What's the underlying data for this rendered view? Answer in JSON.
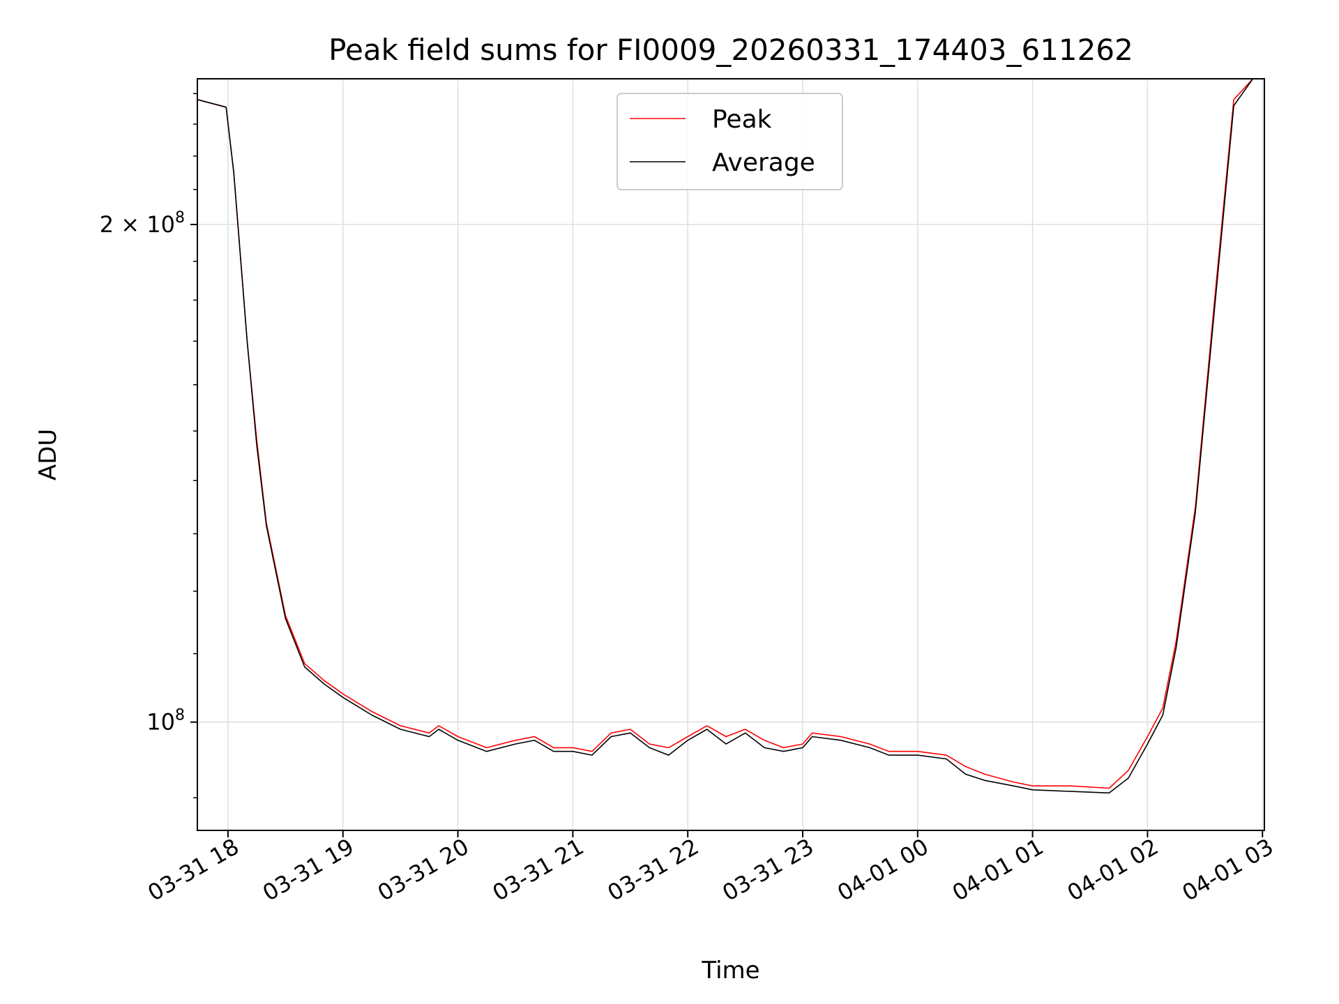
{
  "chart_data": {
    "type": "line",
    "title": "Peak field sums for FI0009_20260331_174403_611262",
    "xlabel": "Time",
    "ylabel": "ADU",
    "yscale": "log",
    "grid": true,
    "legend_position": "top-center",
    "x_ticks": [
      "03-31 18",
      "03-31 19",
      "03-31 20",
      "03-31 21",
      "03-31 22",
      "03-31 23",
      "04-01 00",
      "04-01 01",
      "04-01 02",
      "04-01 03"
    ],
    "y_ticks": [
      {
        "value": 100000000,
        "base": "10",
        "exp": "8",
        "mantissa": ""
      },
      {
        "value": 200000000,
        "base": "10",
        "exp": "8",
        "mantissa": "2 × "
      }
    ],
    "xlim": [
      "2026-03-31 17:44",
      "2026-04-01 03:01"
    ],
    "ylim": [
      86000000,
      245000000
    ],
    "colors": {
      "Peak": "#ff0000",
      "Average": "#000000"
    },
    "series": [
      {
        "name": "Peak",
        "points": [
          [
            "2026-03-31 17:44",
            238000000
          ],
          [
            "2026-03-31 17:50",
            237000000
          ],
          [
            "2026-03-31 17:59",
            235500000
          ],
          [
            "2026-03-31 18:03",
            215000000
          ],
          [
            "2026-03-31 18:10",
            170000000
          ],
          [
            "2026-03-31 18:15",
            148000000
          ],
          [
            "2026-03-31 18:20",
            132000000
          ],
          [
            "2026-03-31 18:30",
            116000000
          ],
          [
            "2026-03-31 18:40",
            108500000
          ],
          [
            "2026-03-31 18:50",
            106000000
          ],
          [
            "2026-03-31 19:00",
            104000000
          ],
          [
            "2026-03-31 19:15",
            101500000
          ],
          [
            "2026-03-31 19:30",
            99500000
          ],
          [
            "2026-03-31 19:45",
            98500000
          ],
          [
            "2026-03-31 19:50",
            99500000
          ],
          [
            "2026-03-31 20:00",
            98000000
          ],
          [
            "2026-03-31 20:15",
            96500000
          ],
          [
            "2026-03-31 20:30",
            97500000
          ],
          [
            "2026-03-31 20:40",
            98000000
          ],
          [
            "2026-03-31 20:50",
            96500000
          ],
          [
            "2026-03-31 21:00",
            96500000
          ],
          [
            "2026-03-31 21:10",
            96000000
          ],
          [
            "2026-03-31 21:20",
            98500000
          ],
          [
            "2026-03-31 21:30",
            99000000
          ],
          [
            "2026-03-31 21:40",
            97000000
          ],
          [
            "2026-03-31 21:50",
            96500000
          ],
          [
            "2026-03-31 22:00",
            98000000
          ],
          [
            "2026-03-31 22:10",
            99500000
          ],
          [
            "2026-03-31 22:20",
            98000000
          ],
          [
            "2026-03-31 22:30",
            99000000
          ],
          [
            "2026-03-31 22:40",
            97500000
          ],
          [
            "2026-03-31 22:50",
            96500000
          ],
          [
            "2026-03-31 23:00",
            97000000
          ],
          [
            "2026-03-31 23:05",
            98500000
          ],
          [
            "2026-03-31 23:20",
            98000000
          ],
          [
            "2026-03-31 23:35",
            97000000
          ],
          [
            "2026-03-31 23:45",
            96000000
          ],
          [
            "2026-04-01 00:00",
            96000000
          ],
          [
            "2026-04-01 00:15",
            95500000
          ],
          [
            "2026-04-01 00:25",
            94000000
          ],
          [
            "2026-04-01 00:35",
            93000000
          ],
          [
            "2026-04-01 00:50",
            92000000
          ],
          [
            "2026-04-01 01:00",
            91500000
          ],
          [
            "2026-04-01 01:20",
            91500000
          ],
          [
            "2026-04-01 01:40",
            91200000
          ],
          [
            "2026-04-01 01:50",
            93500000
          ],
          [
            "2026-04-01 02:00",
            98000000
          ],
          [
            "2026-04-01 02:08",
            102000000
          ],
          [
            "2026-04-01 02:15",
            112000000
          ],
          [
            "2026-04-01 02:25",
            135000000
          ],
          [
            "2026-04-01 02:35",
            180000000
          ],
          [
            "2026-04-01 02:45",
            238000000
          ],
          [
            "2026-04-01 02:55",
            245000000
          ]
        ]
      },
      {
        "name": "Average",
        "points": [
          [
            "2026-03-31 17:44",
            238000000
          ],
          [
            "2026-03-31 17:50",
            237000000
          ],
          [
            "2026-03-31 17:59",
            235500000
          ],
          [
            "2026-03-31 18:03",
            215000000
          ],
          [
            "2026-03-31 18:10",
            170000000
          ],
          [
            "2026-03-31 18:15",
            147000000
          ],
          [
            "2026-03-31 18:20",
            131500000
          ],
          [
            "2026-03-31 18:30",
            115500000
          ],
          [
            "2026-03-31 18:40",
            108000000
          ],
          [
            "2026-03-31 18:50",
            105500000
          ],
          [
            "2026-03-31 19:00",
            103500000
          ],
          [
            "2026-03-31 19:15",
            101000000
          ],
          [
            "2026-03-31 19:30",
            99000000
          ],
          [
            "2026-03-31 19:45",
            98000000
          ],
          [
            "2026-03-31 19:50",
            99000000
          ],
          [
            "2026-03-31 20:00",
            97500000
          ],
          [
            "2026-03-31 20:15",
            96000000
          ],
          [
            "2026-03-31 20:30",
            97000000
          ],
          [
            "2026-03-31 20:40",
            97500000
          ],
          [
            "2026-03-31 20:50",
            96000000
          ],
          [
            "2026-03-31 21:00",
            96000000
          ],
          [
            "2026-03-31 21:10",
            95500000
          ],
          [
            "2026-03-31 21:20",
            98000000
          ],
          [
            "2026-03-31 21:30",
            98500000
          ],
          [
            "2026-03-31 21:40",
            96500000
          ],
          [
            "2026-03-31 21:50",
            95500000
          ],
          [
            "2026-03-31 22:00",
            97500000
          ],
          [
            "2026-03-31 22:10",
            99000000
          ],
          [
            "2026-03-31 22:20",
            97000000
          ],
          [
            "2026-03-31 22:30",
            98500000
          ],
          [
            "2026-03-31 22:40",
            96500000
          ],
          [
            "2026-03-31 22:50",
            96000000
          ],
          [
            "2026-03-31 23:00",
            96500000
          ],
          [
            "2026-03-31 23:05",
            98000000
          ],
          [
            "2026-03-31 23:20",
            97500000
          ],
          [
            "2026-03-31 23:35",
            96500000
          ],
          [
            "2026-03-31 23:45",
            95500000
          ],
          [
            "2026-04-01 00:00",
            95500000
          ],
          [
            "2026-04-01 00:15",
            95000000
          ],
          [
            "2026-04-01 00:25",
            93000000
          ],
          [
            "2026-04-01 00:35",
            92200000
          ],
          [
            "2026-04-01 00:50",
            91500000
          ],
          [
            "2026-04-01 01:00",
            91000000
          ],
          [
            "2026-04-01 01:20",
            90800000
          ],
          [
            "2026-04-01 01:40",
            90600000
          ],
          [
            "2026-04-01 01:50",
            92500000
          ],
          [
            "2026-04-01 02:00",
            97000000
          ],
          [
            "2026-04-01 02:08",
            101000000
          ],
          [
            "2026-04-01 02:15",
            111000000
          ],
          [
            "2026-04-01 02:25",
            134000000
          ],
          [
            "2026-04-01 02:35",
            178000000
          ],
          [
            "2026-04-01 02:45",
            236000000
          ],
          [
            "2026-04-01 02:55",
            245000000
          ]
        ]
      }
    ]
  }
}
